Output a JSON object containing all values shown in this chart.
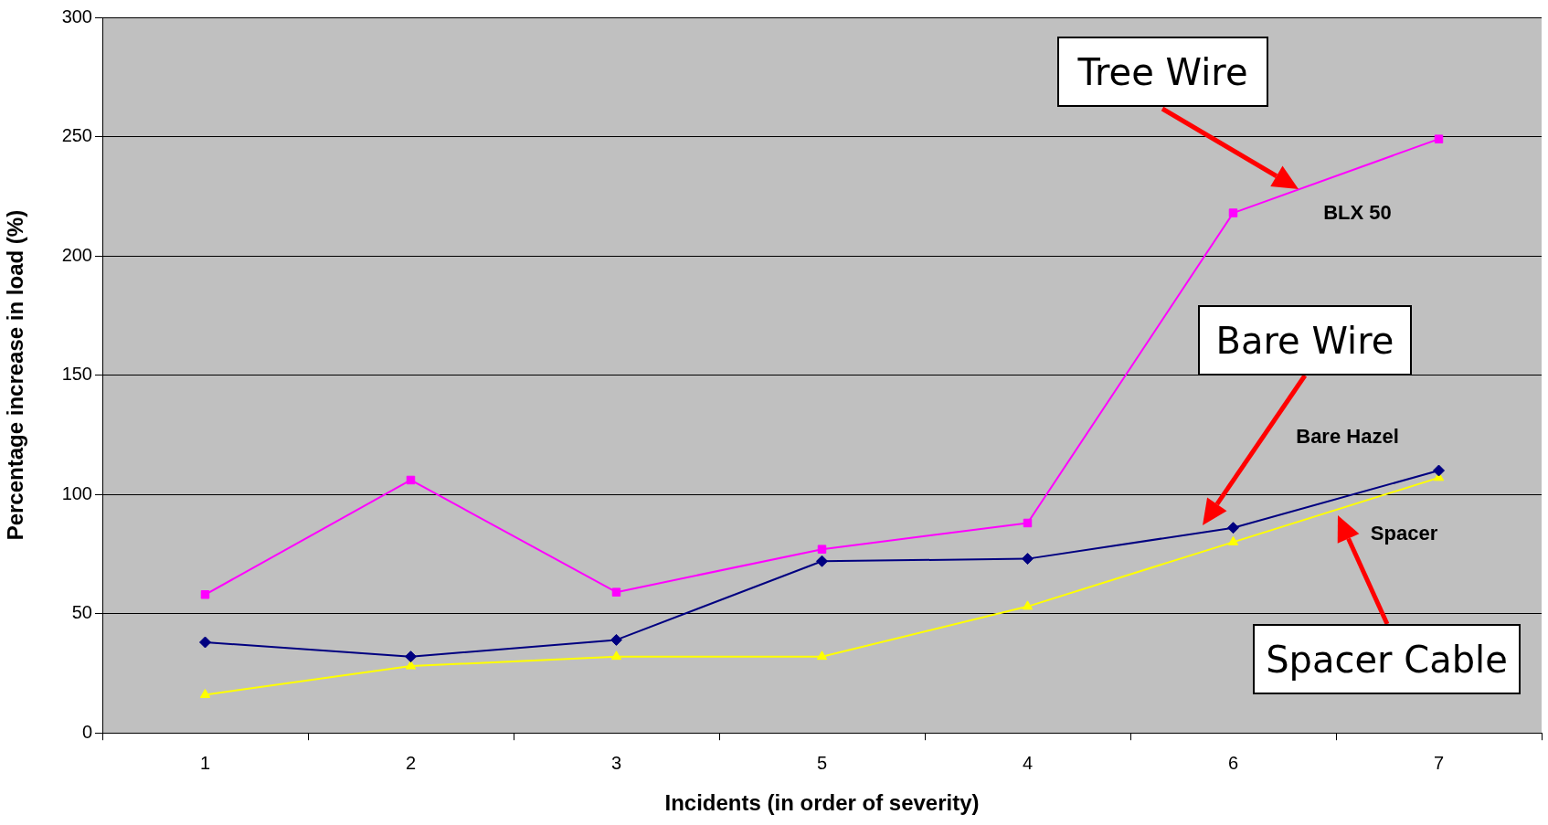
{
  "chart_data": {
    "type": "line",
    "xlabel": "Incidents (in order of severity)",
    "ylabel": "Percentage increase in load (%)",
    "categories": [
      "1",
      "2",
      "3",
      "5",
      "4",
      "6",
      "7"
    ],
    "series": [
      {
        "name": "BLX 50",
        "color": "#ff00ff",
        "marker": "square",
        "values": [
          58,
          106,
          59,
          77,
          88,
          218,
          249
        ]
      },
      {
        "name": "Bare Hazel",
        "color": "#000080",
        "marker": "diamond",
        "values": [
          38,
          32,
          39,
          72,
          73,
          86,
          110
        ]
      },
      {
        "name": "Spacer",
        "color": "#ffff00",
        "marker": "triangle",
        "values": [
          16,
          28,
          32,
          32,
          53,
          80,
          107
        ]
      }
    ],
    "ylim": [
      0,
      300
    ],
    "yticks": [
      0,
      50,
      100,
      150,
      200,
      250,
      300
    ],
    "grid": "y",
    "legend": false,
    "annotations": [
      "Tree Wire",
      "Bare Wire",
      "Spacer Cable"
    ]
  }
}
